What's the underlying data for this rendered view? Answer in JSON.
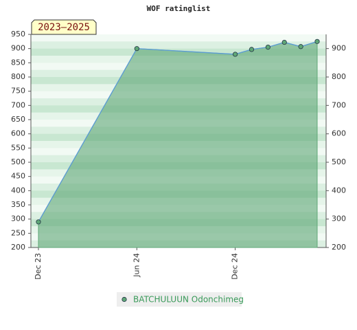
{
  "chart_data": {
    "type": "area",
    "title": "WOF ratinglist",
    "annotation": "2023–2025",
    "x": [
      "2023-12",
      "2024-06",
      "2024-12",
      "2025-01",
      "2025-02",
      "2025-03",
      "2025-04",
      "2025-05"
    ],
    "series": [
      {
        "name": "BATCHULUUN Odonchimeg",
        "color": "#5fa777",
        "values": [
          290,
          900,
          880,
          897,
          905,
          922,
          907,
          925
        ]
      }
    ],
    "xlim": [
      "2023-12",
      "2025-05"
    ],
    "xticks": [
      {
        "value": "2023-12",
        "label": "Dec 23"
      },
      {
        "value": "2024-06",
        "label": "Jun 24"
      },
      {
        "value": "2024-12",
        "label": "Dec 24"
      }
    ],
    "ylim": [
      200,
      950
    ],
    "yticks": [
      200,
      250,
      300,
      350,
      400,
      450,
      500,
      550,
      600,
      650,
      700,
      750,
      800,
      850,
      900,
      950
    ],
    "y2lim": [
      200,
      950
    ],
    "y2ticks": [
      200,
      300,
      400,
      500,
      600,
      700,
      800,
      900
    ]
  }
}
